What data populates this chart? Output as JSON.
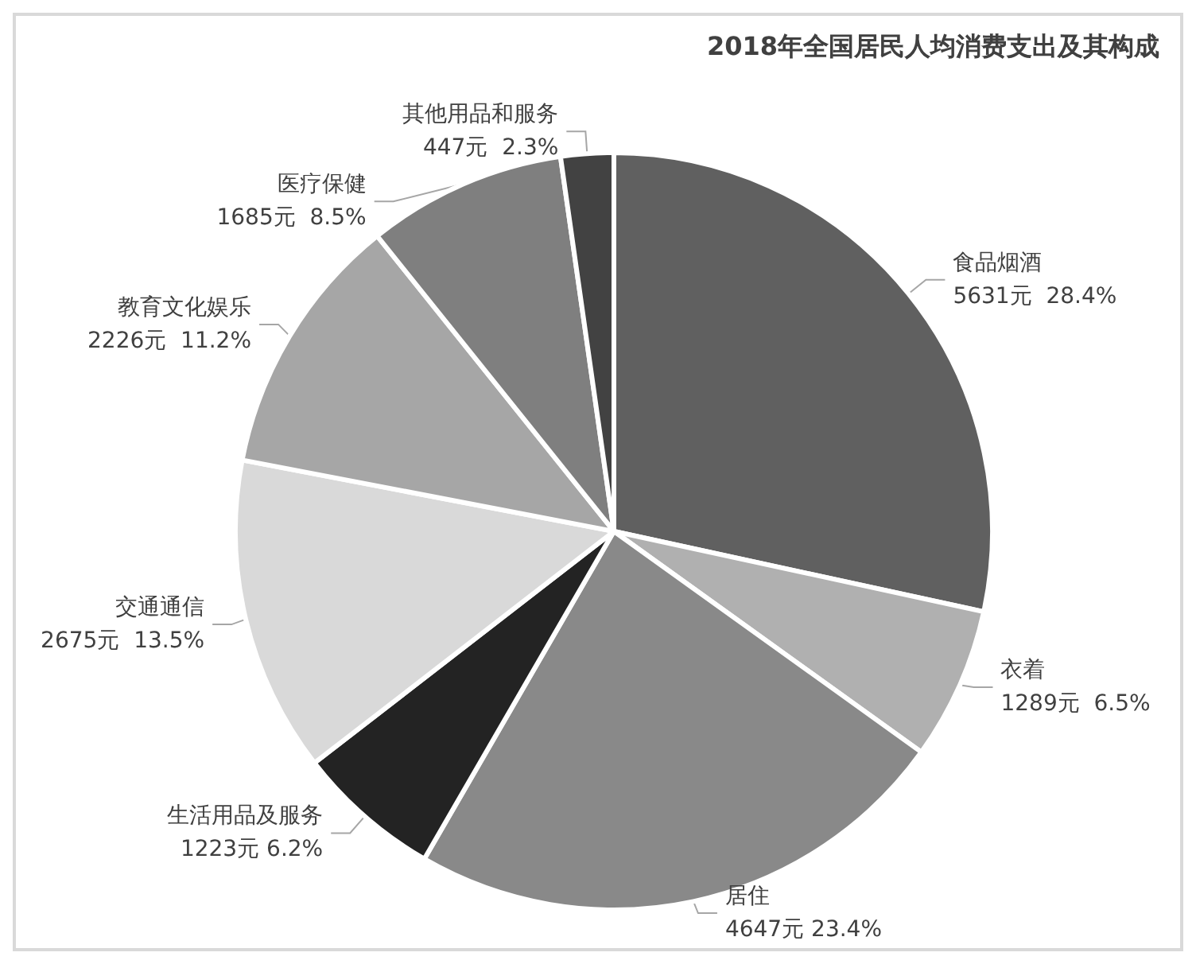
{
  "chart_data": {
    "type": "pie",
    "title": "2018年全国居民人均消费支出及其构成",
    "categories": [
      "食品烟酒",
      "衣着",
      "居住",
      "生活用品及服务",
      "交通通信",
      "教育文化娱乐",
      "医疗保健",
      "其他用品和服务"
    ],
    "values": [
      5631,
      1289,
      4647,
      1223,
      2675,
      2226,
      1685,
      447
    ],
    "value_labels": [
      "5631元  28.4%",
      "1289元  6.5%",
      "4647元 23.4%",
      "1223元 6.2%",
      "2675元  13.5%",
      "2226元  11.2%",
      "1685元  8.5%",
      "447元  2.3%"
    ],
    "colors": [
      "#606060",
      "#b0b0b0",
      "#898989",
      "#232323",
      "#d9d9d9",
      "#a6a6a6",
      "#7f7f7f",
      "#424242"
    ],
    "legend": false
  }
}
